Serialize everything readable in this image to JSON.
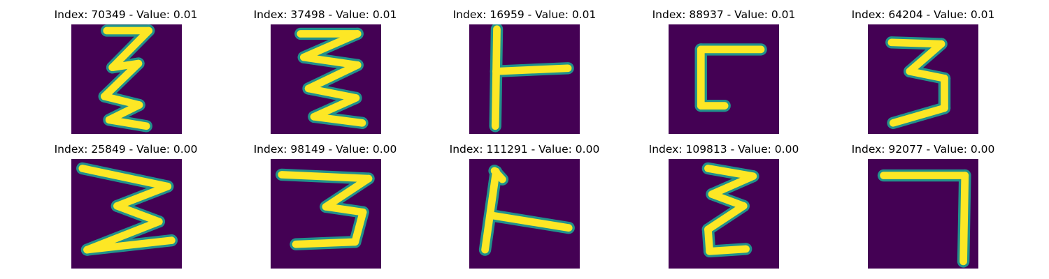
{
  "colormap": {
    "name": "viridis",
    "background": "#440154",
    "edge": "#21918c",
    "foreground": "#fde725"
  },
  "panels": [
    {
      "title": "Index: 70349 - Value: 0.01",
      "glyph": "sigma-like-zigzag",
      "strokes": [
        [
          [
            4.5,
            0.8
          ],
          [
            9.8,
            0.8
          ]
        ],
        [
          [
            9.8,
            0.8
          ],
          [
            5.2,
            5.5
          ]
        ],
        [
          [
            5.2,
            5.5
          ],
          [
            8.5,
            5
          ]
        ],
        [
          [
            8.5,
            5
          ],
          [
            4.2,
            9.2
          ]
        ],
        [
          [
            4.2,
            9.2
          ],
          [
            8.6,
            10.3
          ]
        ],
        [
          [
            8.6,
            10.3
          ],
          [
            4.8,
            12.2
          ]
        ],
        [
          [
            4.8,
            12.2
          ],
          [
            9.5,
            13
          ]
        ]
      ]
    },
    {
      "title": "Index: 37498 - Value: 0.01",
      "glyph": "sigma-like-zigzag",
      "strokes": [
        [
          [
            3.8,
            1.2
          ],
          [
            11,
            1.2
          ]
        ],
        [
          [
            11,
            1.2
          ],
          [
            4.2,
            4.2
          ]
        ],
        [
          [
            4.2,
            4.2
          ],
          [
            11,
            5.2
          ]
        ],
        [
          [
            11,
            5.2
          ],
          [
            4.8,
            8.2
          ]
        ],
        [
          [
            4.8,
            8.2
          ],
          [
            10.8,
            9.4
          ]
        ],
        [
          [
            10.8,
            9.4
          ],
          [
            5.5,
            11.8
          ]
        ],
        [
          [
            5.5,
            11.8
          ],
          [
            11.6,
            12.6
          ]
        ]
      ]
    },
    {
      "title": "Index: 16959 - Value: 0.01",
      "glyph": "t-rotated",
      "strokes": [
        [
          [
            3.5,
            0.6
          ],
          [
            3.3,
            13
          ]
        ],
        [
          [
            3.4,
            6
          ],
          [
            12.5,
            5.6
          ]
        ]
      ]
    },
    {
      "title": "Index: 88937 - Value: 0.01",
      "glyph": "corner",
      "strokes": [
        [
          [
            11.7,
            3.2
          ],
          [
            4.1,
            3.2
          ]
        ],
        [
          [
            4.1,
            3.2
          ],
          [
            4.1,
            10.4
          ]
        ],
        [
          [
            4.1,
            10.4
          ],
          [
            7.1,
            10.4
          ]
        ]
      ]
    },
    {
      "title": "Index: 64204 - Value: 0.01",
      "glyph": "three",
      "strokes": [
        [
          [
            3,
            2.3
          ],
          [
            9.3,
            2.5
          ]
        ],
        [
          [
            9.3,
            2.5
          ],
          [
            5.3,
            6
          ]
        ],
        [
          [
            5.3,
            6
          ],
          [
            9.7,
            6.9
          ]
        ],
        [
          [
            9.7,
            6.9
          ],
          [
            9.7,
            10.7
          ]
        ],
        [
          [
            9.7,
            10.7
          ],
          [
            3.2,
            12.6
          ]
        ]
      ]
    },
    {
      "title": "Index: 25849 - Value: 0.00",
      "glyph": "sigma-like-zigzag",
      "strokes": [
        [
          [
            1.4,
            1.2
          ],
          [
            12.2,
            3.5
          ]
        ],
        [
          [
            12.2,
            3.5
          ],
          [
            5.8,
            6
          ]
        ],
        [
          [
            5.8,
            6
          ],
          [
            11.1,
            8
          ]
        ],
        [
          [
            11.1,
            8
          ],
          [
            2,
            11.6
          ]
        ],
        [
          [
            2,
            11.6
          ],
          [
            12.7,
            10.4
          ]
        ]
      ]
    },
    {
      "title": "Index: 98149 - Value: 0.00",
      "glyph": "three",
      "strokes": [
        [
          [
            1.4,
            2
          ],
          [
            12.4,
            2.5
          ]
        ],
        [
          [
            12.4,
            2.5
          ],
          [
            7,
            6.1
          ]
        ],
        [
          [
            7,
            6.1
          ],
          [
            11.7,
            6.8
          ]
        ],
        [
          [
            11.7,
            6.8
          ],
          [
            10.7,
            10.6
          ]
        ],
        [
          [
            10.7,
            10.6
          ],
          [
            3.2,
            10.9
          ]
        ]
      ]
    },
    {
      "title": "Index: 111291 - Value: 0.00",
      "glyph": "t-rotated",
      "strokes": [
        [
          [
            3.4,
            1.6
          ],
          [
            2,
            11.6
          ]
        ],
        [
          [
            2.8,
            7.2
          ],
          [
            12.6,
            8.8
          ]
        ],
        [
          [
            3.2,
            1.5
          ],
          [
            4.2,
            2.6
          ]
        ]
      ]
    },
    {
      "title": "Index: 109813 - Value: 0.00",
      "glyph": "sigma-like-zigzag",
      "strokes": [
        [
          [
            5,
            1.2
          ],
          [
            10.7,
            2.2
          ]
        ],
        [
          [
            10.7,
            2.2
          ],
          [
            5.5,
            4.5
          ]
        ],
        [
          [
            5.5,
            4.5
          ],
          [
            9.5,
            6
          ]
        ],
        [
          [
            9.5,
            6
          ],
          [
            5,
            9
          ]
        ],
        [
          [
            5,
            9
          ],
          [
            5.2,
            11.8
          ]
        ],
        [
          [
            5.2,
            11.8
          ],
          [
            9.8,
            11.5
          ]
        ]
      ]
    },
    {
      "title": "Index: 92077 - Value: 0.00",
      "glyph": "seven",
      "strokes": [
        [
          [
            2,
            2.1
          ],
          [
            12.3,
            2.1
          ]
        ],
        [
          [
            12.3,
            2.1
          ],
          [
            12.1,
            13.1
          ]
        ]
      ]
    }
  ]
}
